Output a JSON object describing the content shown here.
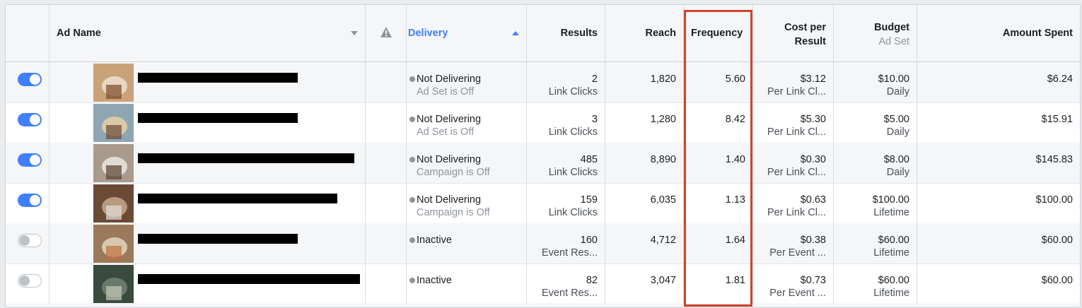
{
  "table": {
    "headers": {
      "ad_name": "Ad Name",
      "delivery": "Delivery",
      "results": "Results",
      "reach": "Reach",
      "frequency": "Frequency",
      "cost_per_result_1": "Cost per",
      "cost_per_result_2": "Result",
      "budget": "Budget",
      "budget_sub": "Ad Set",
      "amount_spent": "Amount Spent"
    },
    "rows": [
      {
        "toggle": "on",
        "delivery": "Not Delivering",
        "delivery_sub": "Ad Set is Off",
        "results": "2",
        "results_sub": "Link Clicks",
        "reach": "1,820",
        "frequency": "5.60",
        "cpr": "$3.12",
        "cpr_sub": "Per Link Cl...",
        "budget": "$10.00",
        "budget_sub": "Daily",
        "spent": "$6.24"
      },
      {
        "toggle": "on",
        "delivery": "Not Delivering",
        "delivery_sub": "Ad Set is Off",
        "results": "3",
        "results_sub": "Link Clicks",
        "reach": "1,280",
        "frequency": "8.42",
        "cpr": "$5.30",
        "cpr_sub": "Per Link Cl...",
        "budget": "$5.00",
        "budget_sub": "Daily",
        "spent": "$15.91"
      },
      {
        "toggle": "on",
        "delivery": "Not Delivering",
        "delivery_sub": "Campaign is Off",
        "results": "485",
        "results_sub": "Link Clicks",
        "reach": "8,890",
        "frequency": "1.40",
        "cpr": "$0.30",
        "cpr_sub": "Per Link Cl...",
        "budget": "$8.00",
        "budget_sub": "Daily",
        "spent": "$145.83"
      },
      {
        "toggle": "on",
        "delivery": "Not Delivering",
        "delivery_sub": "Campaign is Off",
        "results": "159",
        "results_sub": "Link Clicks",
        "reach": "6,035",
        "frequency": "1.13",
        "cpr": "$0.63",
        "cpr_sub": "Per Link Cl...",
        "budget": "$100.00",
        "budget_sub": "Lifetime",
        "spent": "$100.00"
      },
      {
        "toggle": "off",
        "delivery": "Inactive",
        "delivery_sub": "",
        "results": "160",
        "results_sub": "Event Res...",
        "reach": "4,712",
        "frequency": "1.64",
        "cpr": "$0.38",
        "cpr_sub": "Per Event ...",
        "budget": "$60.00",
        "budget_sub": "Lifetime",
        "spent": "$60.00"
      },
      {
        "toggle": "off",
        "delivery": "Inactive",
        "delivery_sub": "",
        "results": "82",
        "results_sub": "Event Res...",
        "reach": "3,047",
        "frequency": "1.81",
        "cpr": "$0.73",
        "cpr_sub": "Per Event ...",
        "budget": "$60.00",
        "budget_sub": "Lifetime",
        "spent": "$60.00"
      }
    ]
  },
  "colors": {
    "accent": "#4080ff",
    "highlight": "#d0432c"
  },
  "icons": {
    "sort": "caret-icon",
    "warning": "warning-icon"
  }
}
